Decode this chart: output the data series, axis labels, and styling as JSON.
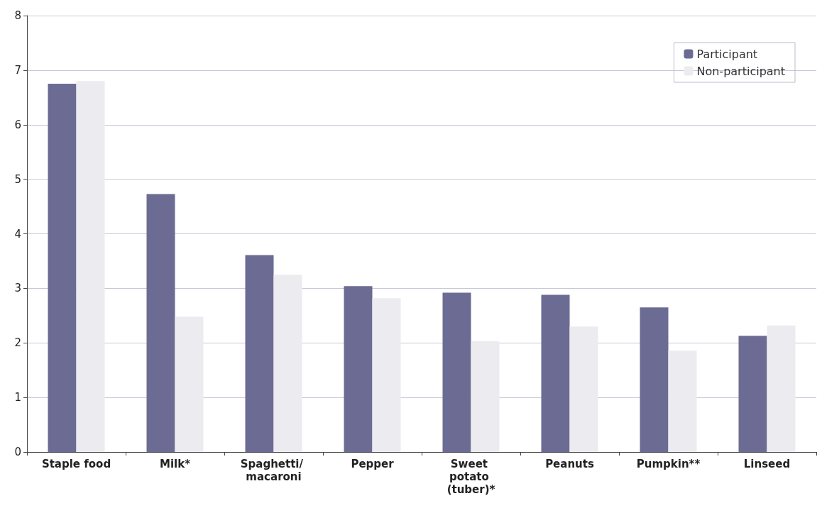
{
  "chart_data": {
    "type": "bar",
    "categories": [
      "Staple food",
      "Milk*",
      "Spaghetti/ macaroni",
      "Pepper",
      "Sweet potato (tuber)*",
      "Peanuts",
      "Pumpkin**",
      "Linseed"
    ],
    "series": [
      {
        "name": "Participant",
        "color": "#6b6b94",
        "values": [
          6.75,
          4.73,
          3.61,
          3.04,
          2.92,
          2.88,
          2.65,
          2.13
        ]
      },
      {
        "name": "Non-participant",
        "color": "#ebebf0",
        "values": [
          6.8,
          2.48,
          3.25,
          2.82,
          2.03,
          2.3,
          1.86,
          2.32
        ]
      }
    ],
    "ylim": [
      0,
      8
    ],
    "yticks": [
      0,
      1,
      2,
      3,
      4,
      5,
      6,
      7,
      8
    ],
    "grid": "y",
    "legend": "top right"
  }
}
